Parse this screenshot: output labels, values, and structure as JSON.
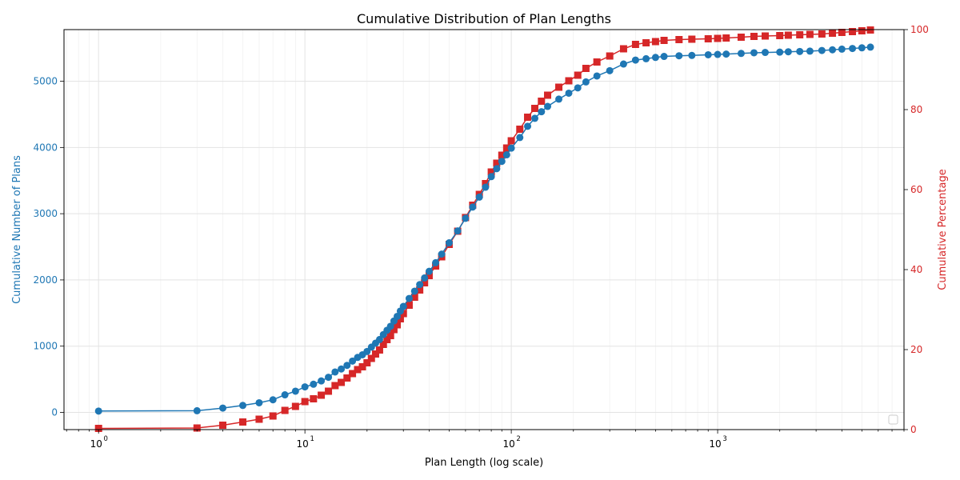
{
  "chart_data": {
    "type": "line",
    "title": "Cumulative Distribution of Plan Lengths",
    "xlabel": "Plan Length (log scale)",
    "ylabel_left": "Cumulative Number of Plans",
    "ylabel_right": "Cumulative Percentage",
    "xscale": "log",
    "xlim": [
      0.68,
      8000
    ],
    "ylim_left": [
      -260,
      5780
    ],
    "ylim_right": [
      0,
      100
    ],
    "grid": true,
    "legend": "lower-right, empty",
    "x_ticks": [
      {
        "base": "10",
        "exp": "0"
      },
      {
        "base": "10",
        "exp": "1"
      },
      {
        "base": "10",
        "exp": "2"
      },
      {
        "base": "10",
        "exp": "3"
      }
    ],
    "y_ticks_left": [
      "0",
      "1000",
      "2000",
      "3000",
      "4000",
      "5000"
    ],
    "y_ticks_right": [
      "0",
      "20",
      "40",
      "60",
      "80",
      "100"
    ],
    "colors": {
      "count": "#1f77b4",
      "percent": "#d62728"
    },
    "series": [
      {
        "axis": "left",
        "marker": "circle",
        "x": [
          1,
          3,
          4,
          5,
          6,
          7,
          8,
          9,
          10,
          11,
          12,
          13,
          14,
          15,
          16,
          17,
          18,
          19,
          20,
          21,
          22,
          23,
          24,
          25,
          26,
          27,
          28,
          29,
          30,
          32,
          34,
          36,
          38,
          40,
          43,
          46,
          50,
          55,
          60,
          65,
          70,
          75,
          80,
          85,
          90,
          95,
          100,
          110,
          120,
          130,
          140,
          150,
          170,
          190,
          210,
          230,
          260,
          300,
          350,
          400,
          450,
          500,
          550,
          650,
          750,
          900,
          1000,
          1100,
          1300,
          1500,
          1700,
          2000,
          2200,
          2500,
          2800,
          3200,
          3600,
          4000,
          4500,
          5000,
          5500
        ],
        "values": [
          20,
          25,
          65,
          105,
          145,
          190,
          265,
          320,
          385,
          425,
          475,
          530,
          610,
          655,
          710,
          775,
          830,
          870,
          920,
          985,
          1045,
          1100,
          1175,
          1240,
          1300,
          1380,
          1450,
          1530,
          1600,
          1720,
          1830,
          1930,
          2030,
          2130,
          2260,
          2390,
          2560,
          2740,
          2930,
          3100,
          3250,
          3400,
          3560,
          3680,
          3790,
          3890,
          3990,
          4150,
          4320,
          4440,
          4540,
          4620,
          4730,
          4820,
          4900,
          4990,
          5080,
          5160,
          5260,
          5320,
          5340,
          5360,
          5375,
          5385,
          5390,
          5400,
          5405,
          5410,
          5420,
          5430,
          5435,
          5440,
          5445,
          5450,
          5455,
          5465,
          5475,
          5485,
          5495,
          5505,
          5515
        ]
      },
      {
        "axis": "right",
        "marker": "square",
        "x": [
          1,
          3,
          4,
          5,
          6,
          7,
          8,
          9,
          10,
          11,
          12,
          13,
          14,
          15,
          16,
          17,
          18,
          19,
          20,
          21,
          22,
          23,
          24,
          25,
          26,
          27,
          28,
          29,
          30,
          32,
          34,
          36,
          38,
          40,
          43,
          46,
          50,
          55,
          60,
          65,
          70,
          75,
          80,
          85,
          90,
          95,
          100,
          110,
          120,
          130,
          140,
          150,
          170,
          190,
          210,
          230,
          260,
          300,
          350,
          400,
          450,
          500,
          550,
          650,
          750,
          900,
          1000,
          1100,
          1300,
          1500,
          1700,
          2000,
          2200,
          2500,
          2800,
          3200,
          3600,
          4000,
          4500,
          5000,
          5500
        ],
        "values": [
          0.3,
          0.4,
          1.1,
          1.9,
          2.6,
          3.4,
          4.8,
          5.8,
          7.0,
          7.7,
          8.6,
          9.6,
          11.0,
          11.8,
          12.9,
          14.0,
          15.0,
          15.7,
          16.7,
          17.8,
          18.9,
          19.9,
          21.3,
          22.5,
          23.5,
          25.0,
          26.2,
          27.7,
          29.0,
          31.1,
          33.1,
          34.9,
          36.7,
          38.5,
          40.9,
          43.2,
          46.3,
          49.6,
          53.0,
          56.1,
          58.8,
          61.5,
          64.4,
          66.6,
          68.6,
          70.4,
          72.2,
          75.1,
          78.1,
          80.3,
          82.1,
          83.6,
          85.6,
          87.2,
          88.6,
          90.3,
          91.9,
          93.4,
          95.2,
          96.3,
          96.7,
          97.0,
          97.3,
          97.5,
          97.6,
          97.7,
          97.8,
          97.9,
          98.1,
          98.3,
          98.4,
          98.5,
          98.6,
          98.7,
          98.8,
          98.9,
          99.1,
          99.3,
          99.5,
          99.7,
          99.9
        ]
      }
    ]
  }
}
